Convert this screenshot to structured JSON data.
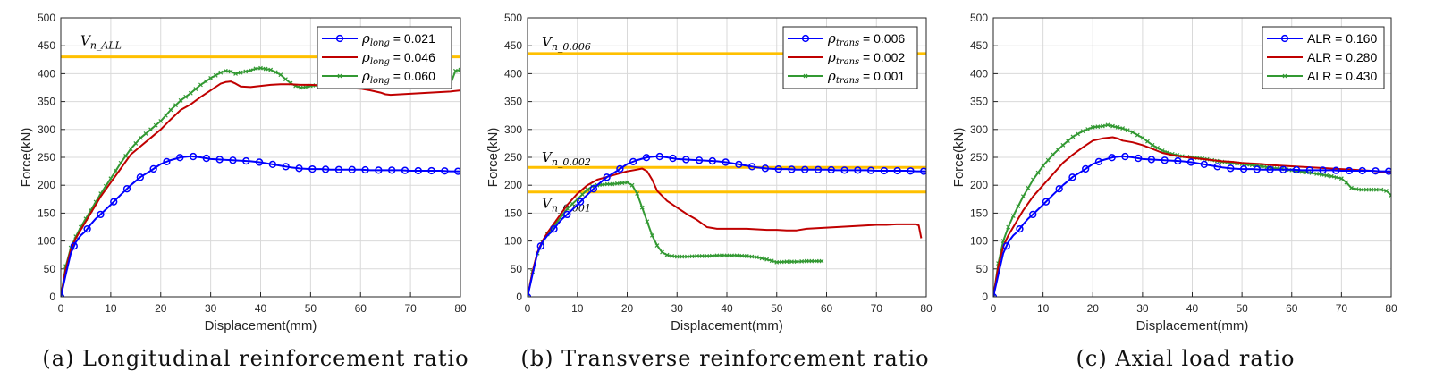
{
  "chart_data": [
    {
      "type": "line",
      "caption": "(a) Longitudinal reinforcement ratio",
      "xlabel": "Displacement(mm)",
      "ylabel": "Force(kN)",
      "xlim": [
        0,
        80
      ],
      "ylim": [
        0,
        500
      ],
      "xticks": [
        "0",
        "10",
        "20",
        "30",
        "40",
        "50",
        "60",
        "70",
        "80"
      ],
      "yticks": [
        "0",
        "50",
        "100",
        "150",
        "200",
        "250",
        "300",
        "350",
        "400",
        "450",
        "500"
      ],
      "grid": true,
      "legend_position": "top-right",
      "reference_lines": [
        {
          "label_main": "V",
          "label_sub": "n_ALL",
          "y": 430,
          "x_range": [
            0,
            80
          ],
          "color": "#ffc000"
        }
      ],
      "series": [
        {
          "name_symbol": "ρ",
          "name_sub": "long",
          "name_value": "= 0.021",
          "color": "#0000ff",
          "marker": "circle",
          "x": [
            0,
            1,
            2,
            3,
            4,
            5,
            6,
            7,
            8,
            10,
            12,
            14,
            16,
            18,
            20,
            22,
            24,
            26,
            28,
            30,
            32,
            34,
            36,
            38,
            40,
            42,
            44,
            46,
            48,
            50,
            52,
            54,
            56,
            58,
            60,
            62,
            64,
            66,
            68,
            70,
            72,
            74,
            76,
            78,
            80
          ],
          "y": [
            0,
            40,
            78,
            98,
            110,
            118,
            130,
            140,
            148,
            165,
            183,
            200,
            215,
            226,
            238,
            245,
            250,
            252,
            250,
            247,
            246,
            245,
            244,
            243,
            241,
            238,
            235,
            232,
            230,
            229,
            229,
            228,
            228,
            228,
            228,
            227,
            227,
            227,
            227,
            226,
            226,
            226,
            226,
            225,
            225
          ]
        },
        {
          "name_symbol": "ρ",
          "name_sub": "long",
          "name_value": "= 0.046",
          "color": "#c00000",
          "marker": "none",
          "x": [
            0,
            1,
            2,
            3,
            4,
            6,
            8,
            10,
            12,
            14,
            16,
            18,
            20,
            22,
            24,
            26,
            28,
            30,
            32,
            33,
            34,
            35,
            36,
            38,
            40,
            42,
            44,
            46,
            48,
            50,
            52,
            54,
            56,
            58,
            60,
            62,
            64,
            65,
            66,
            68,
            70,
            72,
            74,
            76,
            78,
            80
          ],
          "y": [
            0,
            50,
            85,
            105,
            120,
            150,
            180,
            205,
            230,
            255,
            270,
            285,
            300,
            318,
            335,
            345,
            358,
            370,
            382,
            385,
            386,
            382,
            377,
            376,
            378,
            380,
            381,
            381,
            380,
            380,
            379,
            378,
            376,
            374,
            373,
            370,
            366,
            363,
            362,
            363,
            364,
            365,
            366,
            367,
            368,
            370
          ]
        },
        {
          "name_symbol": "ρ",
          "name_sub": "long",
          "name_value": "= 0.060",
          "color": "#339933",
          "marker": "x",
          "x": [
            0,
            1,
            2,
            3,
            4,
            6,
            8,
            10,
            12,
            14,
            16,
            18,
            20,
            22,
            24,
            26,
            28,
            30,
            32,
            33,
            34,
            35,
            36,
            38,
            39,
            40,
            42,
            44,
            45,
            46,
            47,
            48,
            49,
            50,
            52,
            54,
            56,
            58,
            60,
            62,
            64,
            66,
            68,
            70,
            72,
            74,
            76,
            78,
            79,
            80
          ],
          "y": [
            0,
            55,
            88,
            108,
            125,
            155,
            185,
            212,
            240,
            265,
            285,
            300,
            315,
            335,
            352,
            365,
            380,
            392,
            402,
            405,
            404,
            400,
            402,
            406,
            409,
            410,
            407,
            398,
            390,
            383,
            378,
            375,
            376,
            378,
            380,
            381,
            381,
            381,
            381,
            381,
            381,
            381,
            381,
            381,
            381,
            381,
            381,
            381,
            405,
            407
          ]
        }
      ]
    },
    {
      "type": "line",
      "caption": "(b) Transverse reinforcement ratio",
      "xlabel": "Displacement(mm)",
      "ylabel": "Force(kN)",
      "xlim": [
        0,
        80
      ],
      "ylim": [
        0,
        500
      ],
      "xticks": [
        "0",
        "10",
        "20",
        "30",
        "40",
        "50",
        "60",
        "70",
        "80"
      ],
      "yticks": [
        "0",
        "50",
        "100",
        "150",
        "200",
        "250",
        "300",
        "350",
        "400",
        "450",
        "500"
      ],
      "grid": true,
      "legend_position": "top-right",
      "reference_lines": [
        {
          "label_main": "V",
          "label_sub": "n_0.006",
          "y": 436,
          "x_range": [
            0,
            80
          ],
          "color": "#ffc000"
        },
        {
          "label_main": "V",
          "label_sub": "n_0.002",
          "y": 232,
          "x_range": [
            0,
            80
          ],
          "color": "#ffc000"
        },
        {
          "label_main": "V",
          "label_sub": "n_0.001",
          "y": 188,
          "x_range": [
            0,
            80
          ],
          "color": "#ffc000"
        }
      ],
      "series": [
        {
          "name_symbol": "ρ",
          "name_sub": "trans",
          "name_value": "= 0.006",
          "color": "#0000ff",
          "marker": "circle",
          "x": [
            0,
            1,
            2,
            3,
            4,
            5,
            6,
            7,
            8,
            10,
            12,
            14,
            16,
            18,
            20,
            22,
            24,
            26,
            28,
            30,
            32,
            34,
            36,
            38,
            40,
            42,
            44,
            46,
            48,
            50,
            52,
            54,
            56,
            58,
            60,
            62,
            64,
            66,
            68,
            70,
            72,
            74,
            76,
            78,
            80
          ],
          "y": [
            0,
            40,
            78,
            98,
            110,
            118,
            130,
            140,
            148,
            165,
            183,
            200,
            215,
            226,
            238,
            245,
            250,
            252,
            250,
            247,
            246,
            245,
            244,
            243,
            241,
            238,
            235,
            232,
            230,
            229,
            229,
            228,
            228,
            228,
            228,
            227,
            227,
            227,
            227,
            226,
            226,
            226,
            226,
            225,
            225
          ]
        },
        {
          "name_symbol": "ρ",
          "name_sub": "trans",
          "name_value": "= 0.002",
          "color": "#c00000",
          "marker": "none",
          "x": [
            0,
            1,
            2,
            3,
            4,
            6,
            8,
            10,
            12,
            14,
            16,
            18,
            20,
            22,
            23,
            24,
            25,
            26,
            28,
            30,
            32,
            34,
            36,
            38,
            40,
            42,
            44,
            46,
            48,
            50,
            52,
            54,
            56,
            58,
            60,
            62,
            64,
            66,
            68,
            70,
            72,
            74,
            76,
            78,
            78.5,
            79
          ],
          "y": [
            0,
            45,
            80,
            100,
            115,
            140,
            165,
            185,
            200,
            210,
            215,
            220,
            225,
            228,
            230,
            225,
            210,
            190,
            172,
            160,
            148,
            138,
            125,
            122,
            122,
            122,
            122,
            121,
            120,
            120,
            119,
            119,
            122,
            123,
            124,
            125,
            126,
            127,
            128,
            129,
            129,
            130,
            130,
            130,
            128,
            105
          ]
        },
        {
          "name_symbol": "ρ",
          "name_sub": "trans",
          "name_value": "= 0.001",
          "color": "#339933",
          "marker": "x",
          "x": [
            0,
            1,
            2,
            3,
            4,
            6,
            8,
            10,
            12,
            13,
            14,
            15,
            16,
            17,
            18,
            19,
            20,
            21,
            22,
            23,
            24,
            25,
            26,
            27,
            28,
            29,
            30,
            32,
            34,
            36,
            38,
            40,
            42,
            44,
            46,
            48,
            50,
            52,
            54,
            56,
            58,
            59
          ],
          "y": [
            0,
            45,
            78,
            98,
            112,
            135,
            158,
            175,
            192,
            198,
            200,
            201,
            202,
            202,
            203,
            204,
            205,
            200,
            185,
            160,
            135,
            110,
            92,
            80,
            75,
            73,
            72,
            72,
            73,
            73,
            74,
            74,
            74,
            73,
            71,
            67,
            62,
            63,
            63,
            64,
            64,
            64
          ]
        }
      ]
    },
    {
      "type": "line",
      "caption": "(c) Axial load ratio",
      "xlabel": "Displacement(mm)",
      "ylabel": "Force(kN)",
      "xlim": [
        0,
        80
      ],
      "ylim": [
        0,
        500
      ],
      "xticks": [
        "0",
        "10",
        "20",
        "30",
        "40",
        "50",
        "60",
        "70",
        "80"
      ],
      "yticks": [
        "0",
        "50",
        "100",
        "150",
        "200",
        "250",
        "300",
        "350",
        "400",
        "450",
        "500"
      ],
      "grid": true,
      "legend_position": "top-right",
      "reference_lines": [],
      "series": [
        {
          "name_symbol": "",
          "name_sub": "",
          "name_value": "ALR = 0.160",
          "color": "#0000ff",
          "marker": "circle",
          "x": [
            0,
            1,
            2,
            3,
            4,
            5,
            6,
            7,
            8,
            10,
            12,
            14,
            16,
            18,
            20,
            22,
            24,
            26,
            28,
            30,
            32,
            34,
            36,
            38,
            40,
            42,
            44,
            46,
            48,
            50,
            52,
            54,
            56,
            58,
            60,
            62,
            64,
            66,
            68,
            70,
            72,
            74,
            76,
            78,
            80
          ],
          "y": [
            0,
            40,
            78,
            98,
            110,
            118,
            130,
            140,
            148,
            165,
            183,
            200,
            215,
            226,
            238,
            245,
            250,
            252,
            250,
            247,
            246,
            245,
            244,
            243,
            241,
            238,
            235,
            232,
            230,
            229,
            229,
            228,
            228,
            228,
            228,
            227,
            227,
            227,
            227,
            226,
            226,
            226,
            226,
            225,
            225
          ]
        },
        {
          "name_symbol": "",
          "name_sub": "",
          "name_value": "ALR = 0.280",
          "color": "#c00000",
          "marker": "none",
          "x": [
            0,
            1,
            2,
            3,
            4,
            6,
            8,
            10,
            12,
            14,
            16,
            18,
            20,
            22,
            24,
            25,
            26,
            28,
            30,
            32,
            34,
            36,
            38,
            40,
            42,
            44,
            46,
            48,
            50,
            52,
            54,
            56,
            58,
            60,
            62,
            64,
            66,
            68,
            70,
            72,
            74,
            76,
            78,
            80
          ],
          "y": [
            0,
            55,
            90,
            110,
            125,
            155,
            180,
            200,
            220,
            240,
            255,
            268,
            280,
            284,
            286,
            284,
            280,
            277,
            272,
            265,
            258,
            254,
            251,
            249,
            247,
            245,
            243,
            242,
            240,
            239,
            238,
            236,
            235,
            234,
            233,
            232,
            231,
            230,
            229,
            228,
            227,
            226,
            224,
            223
          ]
        },
        {
          "name_symbol": "",
          "name_sub": "",
          "name_value": "ALR = 0.430",
          "color": "#339933",
          "marker": "x",
          "x": [
            0,
            1,
            2,
            3,
            4,
            6,
            8,
            10,
            12,
            14,
            16,
            18,
            20,
            22,
            23,
            24,
            26,
            28,
            30,
            32,
            34,
            36,
            38,
            40,
            42,
            44,
            46,
            48,
            50,
            52,
            54,
            56,
            58,
            60,
            62,
            64,
            66,
            68,
            70,
            71,
            72,
            73,
            74,
            76,
            78,
            79,
            80
          ],
          "y": [
            0,
            60,
            100,
            125,
            145,
            180,
            210,
            235,
            255,
            272,
            287,
            297,
            304,
            306,
            308,
            306,
            302,
            295,
            285,
            272,
            262,
            256,
            252,
            250,
            248,
            245,
            242,
            240,
            238,
            236,
            234,
            231,
            229,
            227,
            224,
            222,
            219,
            216,
            212,
            205,
            195,
            193,
            192,
            192,
            192,
            190,
            182
          ]
        }
      ]
    }
  ]
}
